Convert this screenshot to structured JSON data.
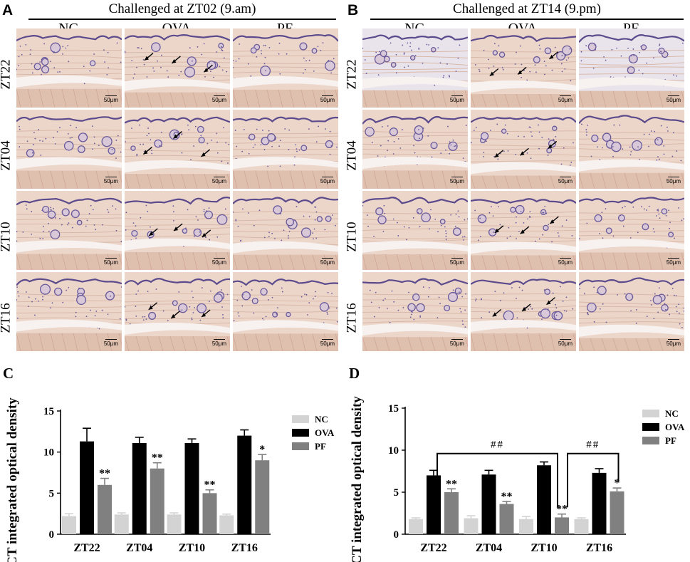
{
  "panels": {
    "A": {
      "letter": "A",
      "title": "Challenged at ZT02 (9.am)"
    },
    "B": {
      "letter": "B",
      "title": "Challenged at ZT14 (9.pm)"
    },
    "C": {
      "letter": "C"
    },
    "D": {
      "letter": "D"
    }
  },
  "micrograph_columns": [
    "NC",
    "OVA",
    "PF"
  ],
  "micrograph_rows": [
    "ZT22",
    "ZT04",
    "ZT10",
    "ZT16"
  ],
  "scale_bar_label": "50μm",
  "colors": {
    "NC": "#d3d3d3",
    "OVA": "#000000",
    "PF": "#808080",
    "tissue": "#e8d2c6",
    "stain": "#5a4a8a"
  },
  "chart_data": [
    {
      "panel": "C",
      "type": "bar",
      "ylabel": "MCT integrated optical density",
      "xlabel": "",
      "categories": [
        "ZT22",
        "ZT04",
        "ZT10",
        "ZT16"
      ],
      "ylim": [
        0,
        15
      ],
      "yticks": [
        0,
        5,
        10,
        15
      ],
      "legend_position": "top-right",
      "series": [
        {
          "name": "NC",
          "values": [
            2.2,
            2.4,
            2.4,
            2.3
          ],
          "errors": [
            0.3,
            0.2,
            0.2,
            0.15
          ]
        },
        {
          "name": "OVA",
          "values": [
            11.3,
            11.1,
            11.1,
            12.0
          ],
          "errors": [
            1.6,
            0.7,
            0.5,
            0.7
          ]
        },
        {
          "name": "PF",
          "values": [
            6.0,
            8.0,
            5.0,
            9.0
          ],
          "errors": [
            0.8,
            0.7,
            0.4,
            0.7
          ]
        }
      ],
      "annotations": [
        {
          "category": "ZT22",
          "series": "PF",
          "text": "**"
        },
        {
          "category": "ZT04",
          "series": "PF",
          "text": "**"
        },
        {
          "category": "ZT10",
          "series": "PF",
          "text": "**"
        },
        {
          "category": "ZT16",
          "series": "PF",
          "text": "*"
        }
      ]
    },
    {
      "panel": "D",
      "type": "bar",
      "ylabel": "MCT integrated optical density",
      "xlabel": "",
      "categories": [
        "ZT22",
        "ZT04",
        "ZT10",
        "ZT16"
      ],
      "ylim": [
        0,
        15
      ],
      "yticks": [
        0,
        5,
        10,
        15
      ],
      "legend_position": "top-right",
      "series": [
        {
          "name": "NC",
          "values": [
            1.8,
            1.9,
            1.8,
            1.8
          ],
          "errors": [
            0.15,
            0.3,
            0.3,
            0.15
          ]
        },
        {
          "name": "OVA",
          "values": [
            7.0,
            7.1,
            8.2,
            7.3
          ],
          "errors": [
            0.6,
            0.5,
            0.4,
            0.5
          ]
        },
        {
          "name": "PF",
          "values": [
            5.0,
            3.6,
            2.0,
            5.1
          ],
          "errors": [
            0.4,
            0.3,
            0.4,
            0.4
          ]
        }
      ],
      "annotations": [
        {
          "category": "ZT22",
          "series": "PF",
          "text": "**"
        },
        {
          "category": "ZT04",
          "series": "PF",
          "text": "**"
        },
        {
          "category": "ZT10",
          "series": "PF",
          "text": "**"
        },
        {
          "category": "ZT16",
          "series": "PF",
          "text": "*"
        }
      ],
      "significance_brackets": [
        {
          "from": "ZT22",
          "to": "ZT10",
          "text": "##"
        },
        {
          "from": "ZT10",
          "to": "ZT16",
          "text": "##"
        }
      ]
    }
  ]
}
